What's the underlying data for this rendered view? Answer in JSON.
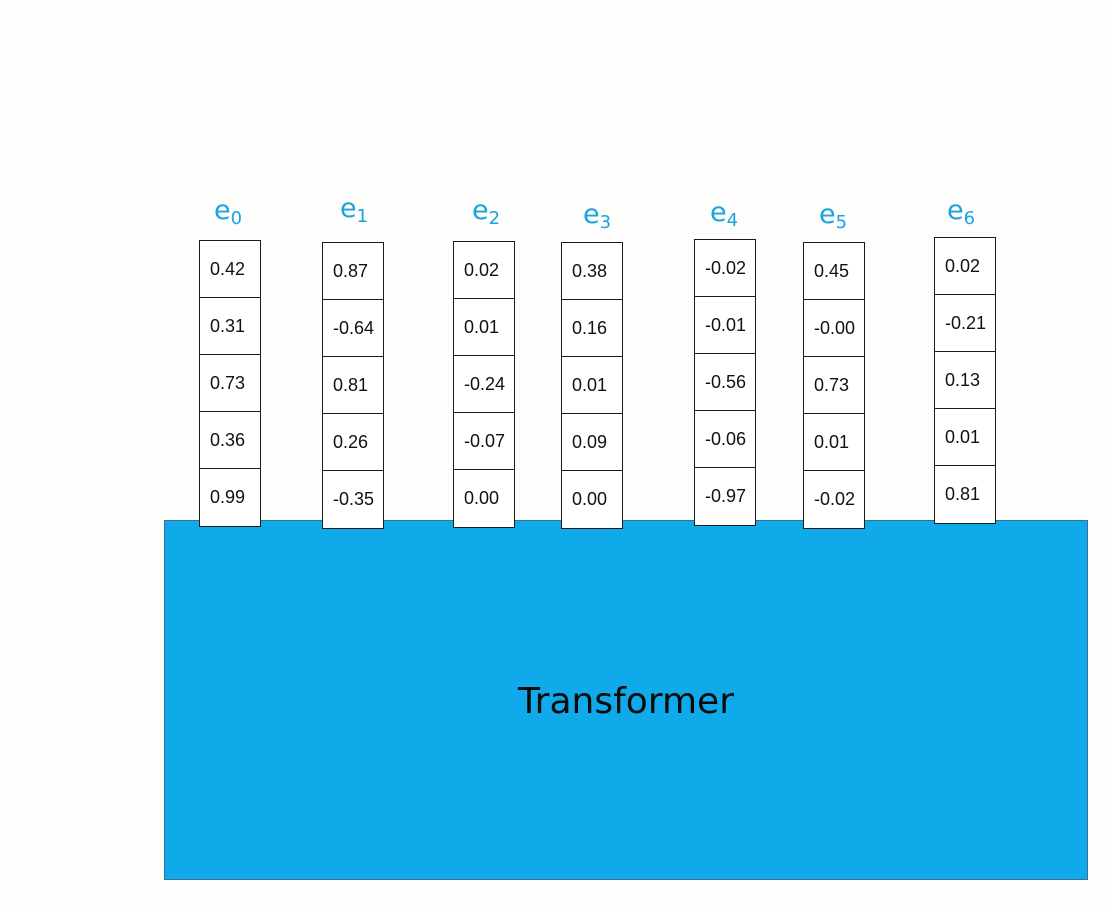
{
  "diagram": {
    "transformer_label": "Transformer",
    "label_color": "#1ba3e0",
    "block_color": "#10aaea",
    "vectors": [
      {
        "base": "e",
        "sub": "0",
        "values": [
          "0.42",
          "0.31",
          "0.73",
          "0.36",
          "0.99"
        ]
      },
      {
        "base": "e",
        "sub": "1",
        "values": [
          "0.87",
          "-0.64",
          "0.81",
          "0.26",
          "-0.35"
        ]
      },
      {
        "base": "e",
        "sub": "2",
        "values": [
          "0.02",
          "0.01",
          "-0.24",
          "-0.07",
          "0.00"
        ]
      },
      {
        "base": "e",
        "sub": "3",
        "values": [
          "0.38",
          "0.16",
          "0.01",
          "0.09",
          "0.00"
        ]
      },
      {
        "base": "e",
        "sub": "4",
        "values": [
          "-0.02",
          "-0.01",
          "-0.56",
          "-0.06",
          "-0.97"
        ]
      },
      {
        "base": "e",
        "sub": "5",
        "values": [
          "0.45",
          "-0.00",
          "0.73",
          "0.01",
          "-0.02"
        ]
      },
      {
        "base": "e",
        "sub": "6",
        "values": [
          "0.02",
          "-0.21",
          "0.13",
          "0.01",
          "0.81"
        ]
      }
    ]
  }
}
